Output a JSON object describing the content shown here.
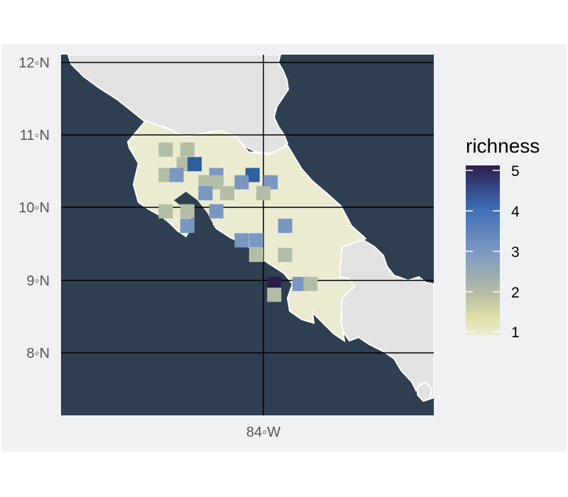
{
  "map": {
    "y_axis_labels": [
      "12◦N",
      "11◦N",
      "10◦N",
      "9◦N",
      "8◦N"
    ],
    "x_axis_labels": [
      "84◦W"
    ],
    "legend": {
      "title": "richness",
      "ticks": [
        "5",
        "4",
        "3",
        "2",
        "1"
      ],
      "min": 1,
      "max": 5
    },
    "colors": {
      "ocean": "#2e3f51",
      "land_other": "#e2e2e2",
      "land_focus": "#ebebd2",
      "gridlines": "#000000",
      "coastline": "#ffffff",
      "panel_background": "#f0f1f3",
      "richness_1": "#ebebd2",
      "richness_2": "#b4bda5",
      "richness_3": "#7a97c2",
      "richness_4": "#2b5f9e",
      "richness_5": "#2b1f4a"
    }
  },
  "chart_data": {
    "type": "heatmap",
    "title": "",
    "xlabel": "",
    "ylabel": "",
    "legend_title": "richness",
    "value_range": [
      1,
      5
    ],
    "lon_range": [
      -86.3,
      -82.7
    ],
    "lat_range": [
      7.2,
      12.1
    ],
    "x_ticks": [
      "84◦W"
    ],
    "y_ticks": [
      "12◦N",
      "11◦N",
      "10◦N",
      "9◦N",
      "8◦N"
    ],
    "cells": [
      {
        "lon": -85.35,
        "lat": 10.8,
        "value": 2
      },
      {
        "lon": -85.05,
        "lat": 10.8,
        "value": 2
      },
      {
        "lon": -85.1,
        "lat": 10.6,
        "value": 2
      },
      {
        "lon": -84.95,
        "lat": 10.6,
        "value": 4
      },
      {
        "lon": -85.35,
        "lat": 10.45,
        "value": 2
      },
      {
        "lon": -85.2,
        "lat": 10.45,
        "value": 3
      },
      {
        "lon": -84.65,
        "lat": 10.45,
        "value": 3
      },
      {
        "lon": -84.15,
        "lat": 10.45,
        "value": 4
      },
      {
        "lon": -84.8,
        "lat": 10.35,
        "value": 2
      },
      {
        "lon": -84.65,
        "lat": 10.35,
        "value": 2
      },
      {
        "lon": -84.3,
        "lat": 10.35,
        "value": 3
      },
      {
        "lon": -83.9,
        "lat": 10.35,
        "value": 3
      },
      {
        "lon": -84.8,
        "lat": 10.2,
        "value": 3
      },
      {
        "lon": -84.5,
        "lat": 10.2,
        "value": 2
      },
      {
        "lon": -84.0,
        "lat": 10.2,
        "value": 2
      },
      {
        "lon": -85.35,
        "lat": 9.95,
        "value": 2
      },
      {
        "lon": -85.05,
        "lat": 9.95,
        "value": 2
      },
      {
        "lon": -84.65,
        "lat": 9.95,
        "value": 3
      },
      {
        "lon": -85.05,
        "lat": 9.75,
        "value": 3
      },
      {
        "lon": -83.7,
        "lat": 9.75,
        "value": 3
      },
      {
        "lon": -84.3,
        "lat": 9.55,
        "value": 3
      },
      {
        "lon": -84.1,
        "lat": 9.55,
        "value": 3
      },
      {
        "lon": -84.1,
        "lat": 9.35,
        "value": 2
      },
      {
        "lon": -83.7,
        "lat": 9.35,
        "value": 2
      },
      {
        "lon": -83.85,
        "lat": 8.95,
        "value": 5
      },
      {
        "lon": -83.5,
        "lat": 8.95,
        "value": 3
      },
      {
        "lon": -83.35,
        "lat": 8.95,
        "value": 2
      },
      {
        "lon": -83.85,
        "lat": 8.8,
        "value": 2
      }
    ]
  }
}
